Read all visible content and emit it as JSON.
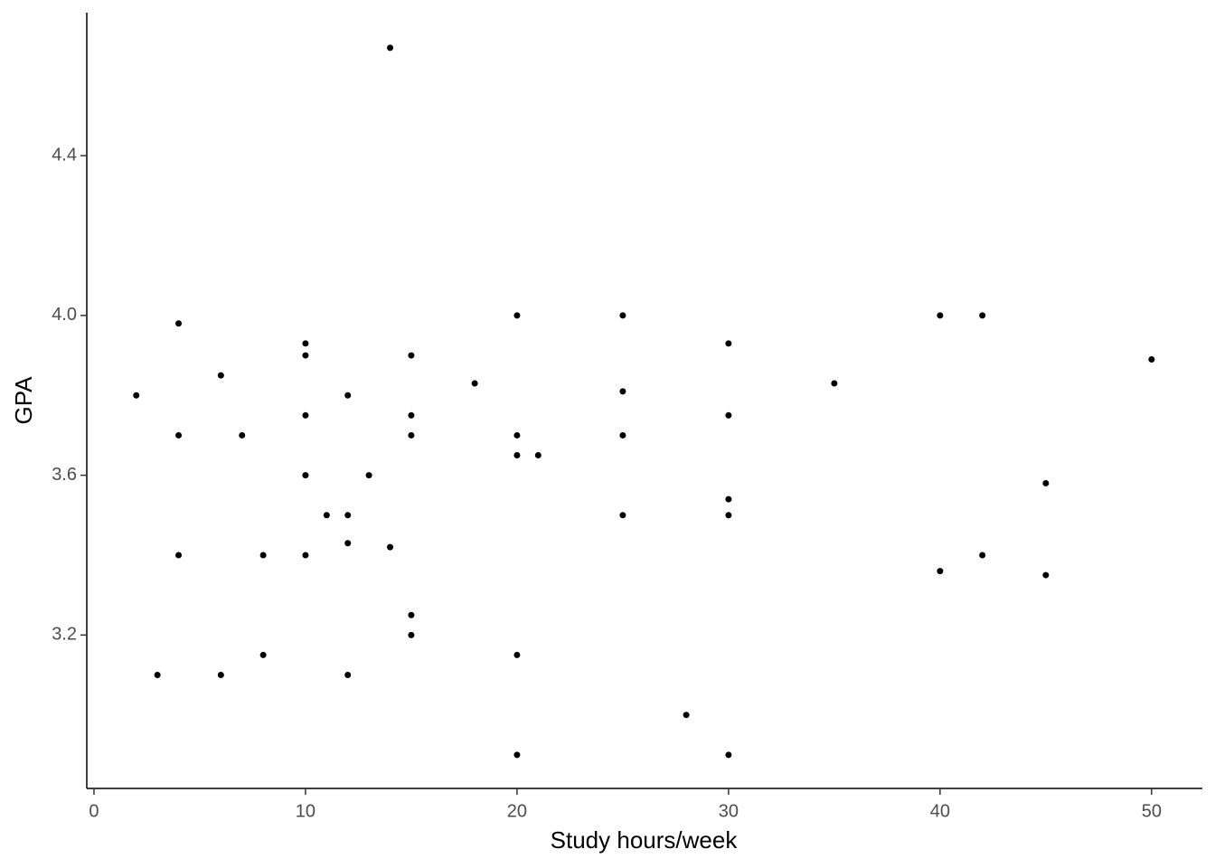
{
  "chart_data": {
    "type": "scatter",
    "x_label": "Study hours/week",
    "y_label": "GPA",
    "color": "#000000",
    "xlim": [
      -0.34,
      52.4
    ],
    "ylim": [
      2.816,
      4.758
    ],
    "xticks": [
      0,
      10,
      20,
      30,
      40,
      50
    ],
    "yticks": [
      3.2,
      3.6,
      {
        "value": 4,
        "label": "4.0"
      },
      4.4
    ],
    "grid": false,
    "x": [
      2,
      3,
      4,
      4,
      4,
      6,
      6,
      7,
      8,
      8,
      10,
      10,
      10,
      10,
      10,
      11,
      12,
      12,
      12,
      12,
      13,
      14,
      14,
      15,
      15,
      15,
      15,
      15,
      18,
      20,
      20,
      20,
      20,
      20,
      21,
      25,
      25,
      25,
      25,
      28,
      30,
      30,
      30,
      30,
      30,
      35,
      40,
      40,
      42,
      42,
      45,
      45,
      50
    ],
    "y": [
      3.8,
      3.1,
      3.98,
      3.7,
      3.4,
      3.85,
      3.1,
      3.7,
      3.4,
      3.15,
      3.93,
      3.9,
      3.75,
      3.6,
      3.4,
      3.5,
      3.8,
      3.5,
      3.43,
      3.1,
      3.6,
      4.67,
      3.42,
      3.9,
      3.75,
      3.7,
      3.25,
      3.2,
      3.83,
      4.0,
      3.7,
      3.65,
      3.15,
      2.9,
      3.65,
      4.0,
      3.81,
      3.7,
      3.5,
      3.0,
      3.93,
      3.75,
      3.54,
      3.5,
      2.9,
      3.83,
      4.0,
      3.36,
      4.0,
      3.4,
      3.58,
      3.35,
      3.89
    ]
  }
}
